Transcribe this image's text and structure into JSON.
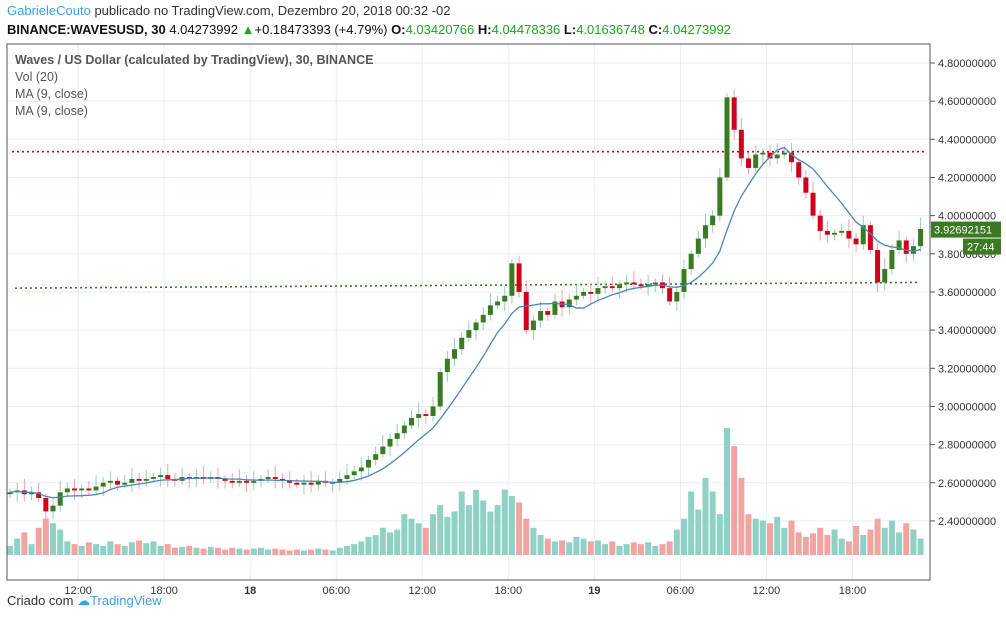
{
  "header": {
    "user": "GabrieleCouto",
    "published": "publicado no TradingView.com, Dezembro 20, 2018 00:32 -02",
    "symbol": "BINANCE:WAVESUSD, 30",
    "last": "4.04273992",
    "change": "+0.18473393 (+4.79%)",
    "o_label": "O:",
    "o": "4.03420766",
    "h_label": "H:",
    "h": "4.04478336",
    "l_label": "L:",
    "l": "4.01636748",
    "c_label": "C:",
    "c": "4.04273992"
  },
  "legend": {
    "title": "Waves / US Dollar (calculated by TradingView), 30, BINANCE",
    "vol": "Vol (20)",
    "ma1": "MA (9, close)",
    "ma2": "MA (9, close)"
  },
  "price_labels": [
    "4.80000000",
    "4.60000000",
    "4.40000000",
    "4.20000000",
    "4.00000000",
    "3.80000000",
    "3.60000000",
    "3.40000000",
    "3.20000000",
    "3.00000000",
    "2.80000000",
    "2.60000000",
    "2.40000000"
  ],
  "current_price": "3.92692151",
  "countdown": "27:44",
  "time_labels": [
    {
      "t": "12:00",
      "i": 9.5,
      "bold": false
    },
    {
      "t": "18:00",
      "i": 21.5,
      "bold": false
    },
    {
      "t": "18",
      "i": 33.5,
      "bold": true
    },
    {
      "t": "06:00",
      "i": 45.5,
      "bold": false
    },
    {
      "t": "12:00",
      "i": 57.5,
      "bold": false
    },
    {
      "t": "18:00",
      "i": 69.5,
      "bold": false
    },
    {
      "t": "19",
      "i": 81.5,
      "bold": true
    },
    {
      "t": "06:00",
      "i": 93.5,
      "bold": false
    },
    {
      "t": "12:00",
      "i": 105.5,
      "bold": false
    },
    {
      "t": "18:00",
      "i": 117.5,
      "bold": false
    }
  ],
  "footer": {
    "created": "Criado com",
    "brand": "TradingView"
  },
  "colors": {
    "up": "#3a7a22",
    "down": "#d0021b",
    "vol_up": "#8fd1c4",
    "vol_down": "#f4a3a3",
    "ma": "#4a86b8",
    "res": "#d0021b",
    "sup": "#3a7a22"
  },
  "chart_data": {
    "type": "candlestick",
    "interval": "30",
    "closes": [
      2.55,
      2.56,
      2.54,
      2.55,
      2.52,
      2.45,
      2.48,
      2.55,
      2.57,
      2.56,
      2.57,
      2.56,
      2.58,
      2.6,
      2.61,
      2.59,
      2.6,
      2.62,
      2.61,
      2.62,
      2.63,
      2.64,
      2.62,
      2.61,
      2.63,
      2.62,
      2.63,
      2.62,
      2.63,
      2.62,
      2.61,
      2.6,
      2.61,
      2.6,
      2.61,
      2.62,
      2.63,
      2.62,
      2.61,
      2.6,
      2.59,
      2.6,
      2.59,
      2.61,
      2.6,
      2.6,
      2.62,
      2.64,
      2.66,
      2.68,
      2.72,
      2.75,
      2.79,
      2.83,
      2.86,
      2.9,
      2.94,
      2.96,
      2.95,
      3.0,
      3.18,
      3.25,
      3.3,
      3.36,
      3.4,
      3.44,
      3.48,
      3.53,
      3.55,
      3.58,
      3.75,
      3.6,
      3.4,
      3.45,
      3.5,
      3.48,
      3.55,
      3.52,
      3.56,
      3.58,
      3.6,
      3.59,
      3.62,
      3.63,
      3.62,
      3.64,
      3.65,
      3.64,
      3.63,
      3.64,
      3.65,
      3.62,
      3.55,
      3.6,
      3.72,
      3.8,
      3.88,
      3.95,
      4.0,
      4.2,
      4.62,
      4.45,
      4.3,
      4.25,
      4.32,
      4.33,
      4.3,
      4.32,
      4.33,
      4.28,
      4.2,
      4.12,
      4.0,
      3.92,
      3.9,
      3.91,
      3.92,
      3.88,
      3.85,
      3.95,
      3.82,
      3.65,
      3.72,
      3.82,
      3.87,
      3.8,
      3.84,
      3.93
    ],
    "volumes": [
      10,
      18,
      25,
      12,
      30,
      40,
      35,
      28,
      15,
      12,
      10,
      14,
      12,
      10,
      15,
      12,
      10,
      14,
      16,
      13,
      15,
      10,
      12,
      8,
      9,
      10,
      8,
      7,
      9,
      8,
      6,
      8,
      7,
      6,
      7,
      8,
      6,
      7,
      6,
      5,
      6,
      5,
      6,
      7,
      6,
      5,
      8,
      10,
      12,
      15,
      20,
      22,
      30,
      25,
      28,
      45,
      40,
      35,
      30,
      45,
      55,
      42,
      48,
      70,
      55,
      72,
      60,
      48,
      55,
      72,
      65,
      58,
      40,
      30,
      22,
      18,
      15,
      16,
      14,
      20,
      18,
      15,
      16,
      12,
      15,
      10,
      12,
      14,
      12,
      14,
      10,
      12,
      15,
      28,
      40,
      70,
      50,
      85,
      70,
      45,
      140,
      120,
      85,
      45,
      40,
      38,
      35,
      42,
      30,
      38,
      25,
      20,
      24,
      30,
      22,
      28,
      18,
      15,
      32,
      22,
      28,
      40,
      30,
      38,
      25,
      35,
      28,
      18
    ],
    "resistance": 4.335,
    "support_start": 3.62,
    "support_end": 3.65,
    "ma_period": 9,
    "ylim": [
      2.2,
      4.9
    ]
  }
}
